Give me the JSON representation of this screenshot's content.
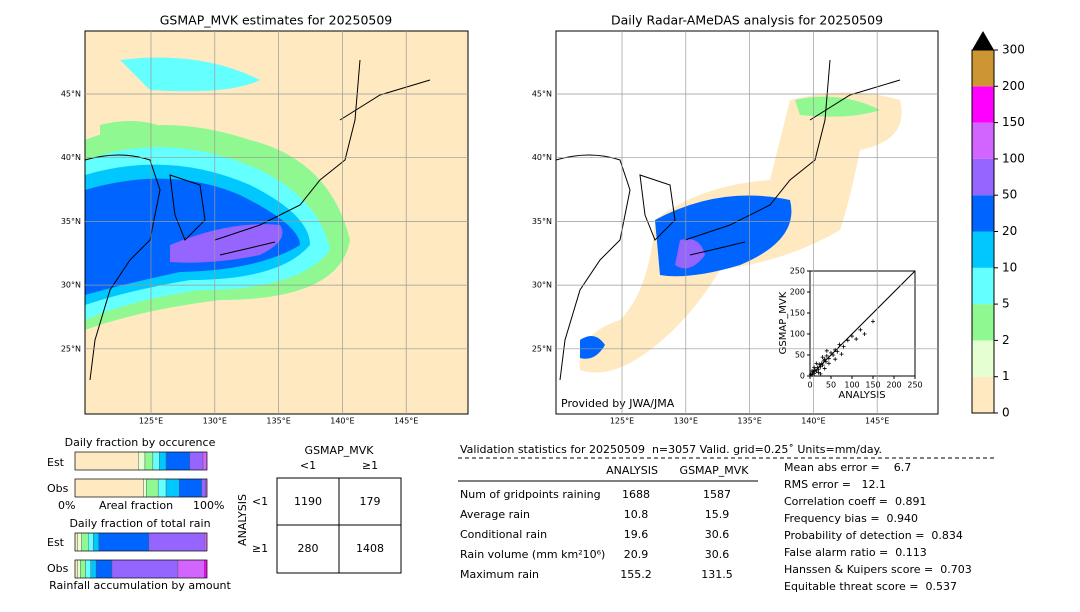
{
  "left_map": {
    "title": "GSMAP_MVK estimates for 20250509",
    "lat_labels": [
      "45°N",
      "40°N",
      "35°N",
      "30°N",
      "25°N"
    ],
    "lon_labels": [
      "125°E",
      "130°E",
      "135°E",
      "140°E",
      "145°E"
    ]
  },
  "right_map": {
    "title": "Daily Radar-AMeDAS analysis for 20250509",
    "lat_labels": [
      "45°N",
      "40°N",
      "35°N",
      "30°N",
      "25°N"
    ],
    "lon_labels": [
      "125°E",
      "130°E",
      "135°E",
      "140°E",
      "145°E"
    ],
    "credit": "Provided by JWA/JMA"
  },
  "inset": {
    "type": "scatter",
    "xlabel": "ANALYSIS",
    "ylabel": "GSMAP_MVK",
    "xlim": [
      0,
      250
    ],
    "ylim": [
      0,
      250
    ],
    "xticks": [
      0,
      50,
      100,
      150,
      200,
      250
    ],
    "yticks": [
      0,
      50,
      100,
      150,
      200,
      250
    ],
    "x": [
      2,
      5,
      8,
      10,
      12,
      15,
      18,
      20,
      22,
      25,
      28,
      30,
      33,
      35,
      38,
      40,
      45,
      50,
      55,
      60,
      65,
      70,
      80,
      90,
      100,
      110,
      120,
      130,
      150,
      5,
      10,
      15,
      20,
      30,
      40,
      25,
      35,
      45,
      60,
      75
    ],
    "y": [
      4,
      3,
      10,
      6,
      14,
      12,
      20,
      16,
      28,
      22,
      30,
      26,
      36,
      40,
      34,
      48,
      42,
      55,
      50,
      62,
      58,
      75,
      70,
      85,
      95,
      88,
      110,
      100,
      130,
      12,
      20,
      30,
      8,
      45,
      60,
      5,
      18,
      30,
      40,
      52
    ]
  },
  "colorbar": {
    "levels": [
      0,
      1,
      2,
      5,
      10,
      20,
      50,
      100,
      150,
      200,
      300
    ],
    "colors": [
      "#fee9c0",
      "#e6ffd2",
      "#90f890",
      "#64ffff",
      "#00c8ff",
      "#0064ff",
      "#9664ff",
      "#d264ff",
      "#ff00ff",
      "#cd9632"
    ]
  },
  "occurrence": {
    "title": "Daily fraction by occurence",
    "rows": [
      "Est",
      "Obs"
    ],
    "axis_labels": [
      "0%",
      "Areal fraction",
      "100%"
    ],
    "values": [
      [
        48,
        5,
        6,
        5,
        5,
        18,
        10,
        3,
        0,
        0
      ],
      [
        52,
        2,
        9,
        6,
        10,
        17,
        3,
        1,
        0,
        0
      ]
    ]
  },
  "total_rain": {
    "title": "Daily fraction of total rain",
    "rows": [
      "Est",
      "Obs"
    ],
    "footer": "Rainfall accumulation by amount",
    "values": [
      [
        2,
        3,
        5,
        4,
        4,
        38,
        42,
        2,
        0,
        0
      ],
      [
        2,
        2,
        4,
        4,
        4,
        12,
        50,
        20,
        2,
        0
      ]
    ]
  },
  "contingency": {
    "title": "GSMAP_MVK",
    "col_labels": [
      "<1",
      "≥1"
    ],
    "row_title": "ANALYSIS",
    "row_labels": [
      "<1",
      "≥1"
    ],
    "cells": [
      [
        1190,
        179
      ],
      [
        280,
        1408
      ]
    ]
  },
  "validation": {
    "header": "Validation statistics for 20250509  n=3057 Valid. grid=0.25˚ Units=mm/day.",
    "columns": [
      "ANALYSIS",
      "GSMAP_MVK"
    ],
    "rows": [
      {
        "label": "Num of gridpoints raining",
        "values": [
          1688,
          1587
        ]
      },
      {
        "label": "Average rain",
        "values": [
          10.8,
          15.9
        ]
      },
      {
        "label": "Conditional rain",
        "values": [
          19.6,
          30.6
        ]
      },
      {
        "label": "Rain volume (mm km²10⁶)",
        "values": [
          20.9,
          30.6
        ]
      },
      {
        "label": "Maximum rain",
        "values": [
          155.2,
          131.5
        ]
      }
    ],
    "scores": [
      "Mean abs error =    6.7",
      "RMS error =   12.1",
      "Correlation coeff =  0.891",
      "Frequency bias =  0.940",
      "Probability of detection =  0.834",
      "False alarm ratio =  0.113",
      "Hanssen & Kuipers score =  0.703",
      "Equitable threat score =  0.537"
    ]
  }
}
